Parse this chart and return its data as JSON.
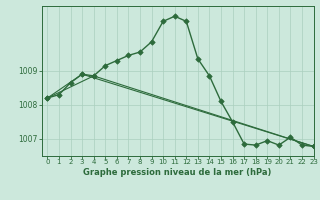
{
  "bg_color": "#cce8dc",
  "grid_color": "#aacfbe",
  "line_color": "#2d6b3c",
  "xlabel": "Graphe pression niveau de la mer (hPa)",
  "xlim": [
    -0.5,
    23
  ],
  "ylim": [
    1006.5,
    1010.9
  ],
  "yticks": [
    1007,
    1008,
    1009
  ],
  "xticks": [
    0,
    1,
    2,
    3,
    4,
    5,
    6,
    7,
    8,
    9,
    10,
    11,
    12,
    13,
    14,
    15,
    16,
    17,
    18,
    19,
    20,
    21,
    22,
    23
  ],
  "series1": {
    "x": [
      0,
      1,
      2,
      3,
      4,
      5,
      6,
      7,
      8,
      9,
      10,
      11,
      12,
      13,
      14,
      15,
      16,
      17,
      18,
      19,
      20,
      21,
      22,
      23
    ],
    "y": [
      1008.2,
      1008.3,
      1008.65,
      1008.9,
      1008.85,
      1009.15,
      1009.3,
      1009.45,
      1009.55,
      1009.85,
      1010.45,
      1010.6,
      1010.45,
      1009.35,
      1008.85,
      1008.1,
      1007.5,
      1006.85,
      1006.82,
      1006.95,
      1006.82,
      1007.05,
      1006.82,
      1006.78
    ]
  },
  "series2": {
    "x": [
      0,
      3,
      23
    ],
    "y": [
      1008.2,
      1008.9,
      1006.78
    ]
  },
  "series3": {
    "x": [
      0,
      4,
      23
    ],
    "y": [
      1008.2,
      1008.85,
      1006.78
    ]
  }
}
